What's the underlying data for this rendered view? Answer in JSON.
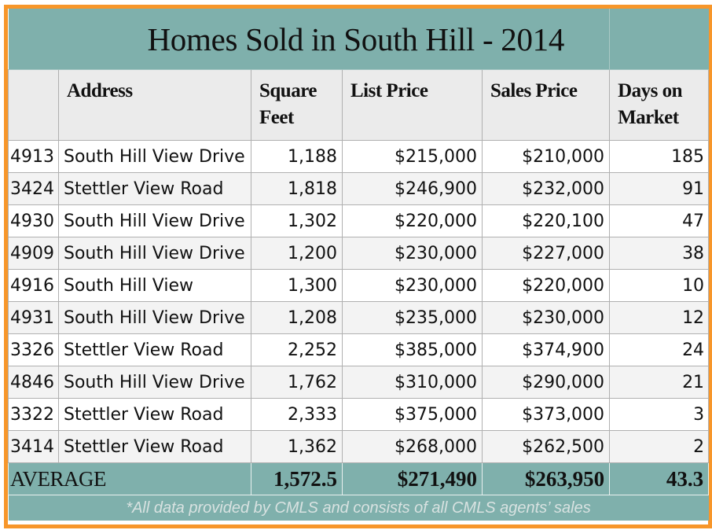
{
  "title": "Homes Sold in South Hill - 2014",
  "headers": {
    "number": "",
    "address": "Address",
    "square_feet": "Square Feet",
    "list_price": "List Price",
    "sales_price": "Sales Price",
    "days_on_market": "Days on Market"
  },
  "rows": [
    {
      "number": "4913",
      "address": "South Hill View Drive",
      "square_feet": "1,188",
      "list_price": "$215,000",
      "sales_price": "$210,000",
      "days_on_market": "185"
    },
    {
      "number": "3424",
      "address": "Stettler View Road",
      "square_feet": "1,818",
      "list_price": "$246,900",
      "sales_price": "$232,000",
      "days_on_market": "91"
    },
    {
      "number": "4930",
      "address": "South Hill View Drive",
      "square_feet": "1,302",
      "list_price": "$220,000",
      "sales_price": "$220,100",
      "days_on_market": "47"
    },
    {
      "number": "4909",
      "address": "South Hill View Drive",
      "square_feet": "1,200",
      "list_price": "$230,000",
      "sales_price": "$227,000",
      "days_on_market": "38"
    },
    {
      "number": "4916",
      "address": "South Hill View",
      "square_feet": "1,300",
      "list_price": "$230,000",
      "sales_price": "$220,000",
      "days_on_market": "10"
    },
    {
      "number": "4931",
      "address": "South Hill View Drive",
      "square_feet": "1,208",
      "list_price": "$235,000",
      "sales_price": "$230,000",
      "days_on_market": "12"
    },
    {
      "number": "3326",
      "address": "Stettler View Road",
      "square_feet": "2,252",
      "list_price": "$385,000",
      "sales_price": "$374,900",
      "days_on_market": "24"
    },
    {
      "number": "4846",
      "address": "South Hill View Drive",
      "square_feet": "1,762",
      "list_price": "$310,000",
      "sales_price": "$290,000",
      "days_on_market": "21"
    },
    {
      "number": "3322",
      "address": "Stettler View Road",
      "square_feet": "2,333",
      "list_price": "$375,000",
      "sales_price": "$373,000",
      "days_on_market": "3"
    },
    {
      "number": "3414",
      "address": "Stettler View Road",
      "square_feet": "1,362",
      "list_price": "$268,000",
      "sales_price": "$262,500",
      "days_on_market": "2"
    }
  ],
  "average": {
    "label": "AVERAGE",
    "square_feet": "1,572.5",
    "list_price": "$271,490",
    "sales_price": "$263,950",
    "days_on_market": "43.3"
  },
  "footnote": "*All data provided by CMLS and consists of all CMLS agents’ sales",
  "colors": {
    "frame_border": "#f7962a",
    "teal_band": "#7fb0ac",
    "header_bg": "#ebebeb",
    "row_alt_bg": "#f3f3f3"
  }
}
